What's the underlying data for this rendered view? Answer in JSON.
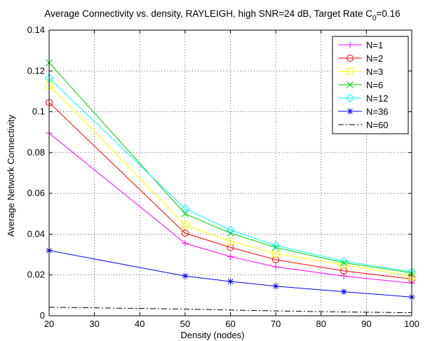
{
  "chart_data": {
    "type": "line",
    "title_main": "Average Connectivity vs. density, RAYLEIGH, high SNR=24 dB, Target Rate C",
    "title_sub": "0",
    "title_end": "=0.16",
    "xlabel": "Density (nodes)",
    "ylabel": "Average Network Connectivity",
    "xlim": [
      20,
      100
    ],
    "ylim": [
      0,
      0.14
    ],
    "xticks": [
      20,
      30,
      40,
      50,
      60,
      70,
      80,
      90,
      100
    ],
    "yticks": [
      0,
      0.02,
      0.04,
      0.06,
      0.08,
      0.1,
      0.12,
      0.14
    ],
    "grid": true,
    "legend_position": "top-right",
    "x": [
      20,
      50,
      60,
      70,
      85,
      100
    ],
    "series": [
      {
        "name": "N=1",
        "color": "#ff00ff",
        "marker": "plus",
        "dash": "solid",
        "values": [
          0.0895,
          0.0355,
          0.029,
          0.024,
          0.0195,
          0.016
        ]
      },
      {
        "name": "N=2",
        "color": "#ff0000",
        "marker": "circle",
        "dash": "solid",
        "values": [
          0.1045,
          0.0405,
          0.0335,
          0.0275,
          0.022,
          0.018
        ]
      },
      {
        "name": "N=3",
        "color": "#ffff00",
        "marker": "square",
        "dash": "solid",
        "values": [
          0.113,
          0.0445,
          0.0365,
          0.0305,
          0.025,
          0.0195
        ]
      },
      {
        "name": "N=6",
        "color": "#00cc00",
        "marker": "x",
        "dash": "solid",
        "values": [
          0.124,
          0.05,
          0.0405,
          0.0335,
          0.026,
          0.021
        ]
      },
      {
        "name": "N=12",
        "color": "#00ffff",
        "marker": "diamond",
        "dash": "solid",
        "values": [
          0.1165,
          0.0525,
          0.042,
          0.0345,
          0.0268,
          0.0215
        ]
      },
      {
        "name": "N=36",
        "color": "#0000ff",
        "marker": "asterisk",
        "dash": "solid",
        "values": [
          0.032,
          0.0195,
          0.0168,
          0.0145,
          0.0118,
          0.0092
        ]
      },
      {
        "name": "N=60",
        "color": "#000000",
        "marker": "none",
        "dash": "dashdot",
        "values": [
          0.0042,
          0.0033,
          0.0028,
          0.0024,
          0.0019,
          0.0015
        ]
      }
    ]
  }
}
